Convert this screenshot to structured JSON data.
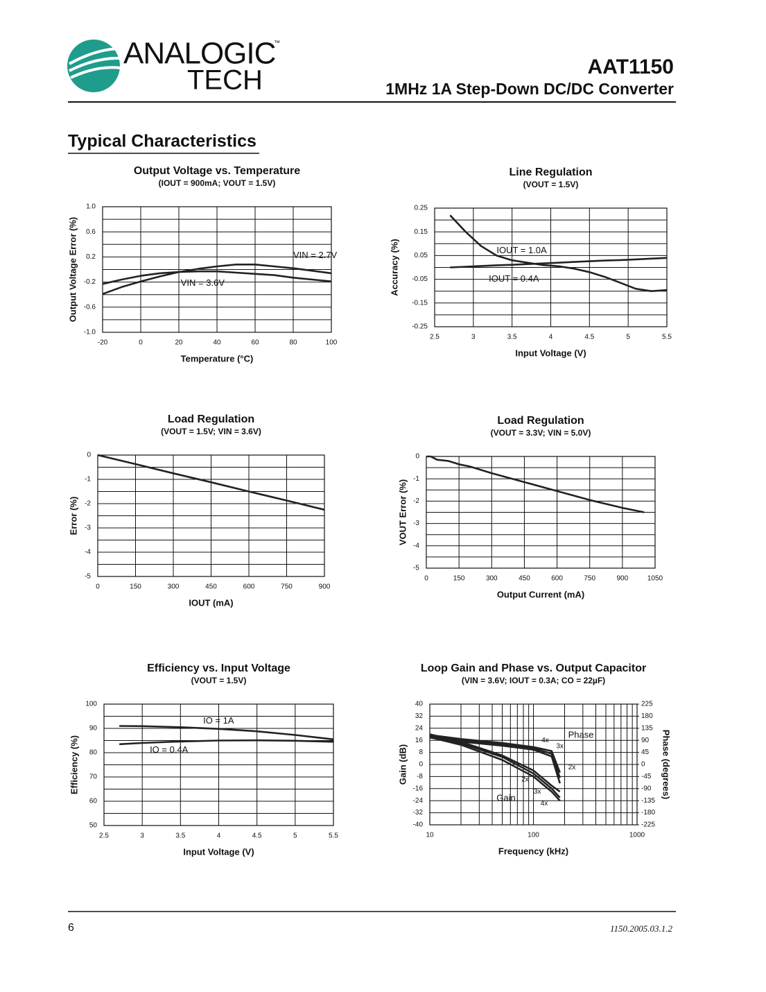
{
  "header": {
    "logo_top": "ANALOGIC",
    "logo_bottom": "TECH",
    "trademark": "™",
    "part": "AAT1150",
    "description": "1MHz 1A Step-Down DC/DC Converter"
  },
  "section_title": "Typical Characteristics",
  "footer": {
    "page": "6",
    "code": "1150.2005.03.1.2"
  },
  "chart_data": [
    {
      "type": "line",
      "title": "Output Voltage vs. Temperature",
      "subtitle": "(IOUT = 900mA; VOUT = 1.5V)",
      "xlabel": "Temperature (°C)",
      "ylabel": "Output Voltage Error (%)",
      "x": [
        -20,
        -10,
        0,
        10,
        20,
        30,
        40,
        50,
        60,
        70,
        80,
        90,
        100
      ],
      "series": [
        {
          "name": "VIN = 2.7V",
          "color": "#222222",
          "values": [
            -0.39,
            -0.28,
            -0.19,
            -0.11,
            -0.04,
            0.01,
            0.05,
            0.08,
            0.08,
            0.05,
            0.02,
            -0.02,
            -0.06
          ]
        },
        {
          "name": "VIN = 3.6V",
          "color": "#222222",
          "values": [
            -0.23,
            -0.16,
            -0.1,
            -0.06,
            -0.04,
            -0.03,
            -0.03,
            -0.05,
            -0.07,
            -0.09,
            -0.13,
            -0.16,
            -0.19
          ]
        }
      ],
      "xlim": [
        -20,
        100
      ],
      "xticks": [
        -20,
        0,
        20,
        40,
        60,
        80,
        100
      ],
      "ylim": [
        -1,
        1
      ],
      "yticks": [
        {
          "value": 1,
          "label": "1.0"
        },
        0.6,
        0.2,
        -0.2,
        -0.6,
        {
          "value": -1,
          "label": "-1.0"
        }
      ],
      "grid": true,
      "minor_grid": true
    },
    {
      "type": "line",
      "title": "Line Regulation",
      "subtitle": "(VOUT = 1.5V)",
      "xlabel": "Input Voltage (V)",
      "ylabel": "Accuracy (%)",
      "x": [
        2.7,
        2.9,
        3.1,
        3.3,
        3.5,
        3.7,
        3.9,
        4.1,
        4.3,
        4.5,
        4.7,
        4.9,
        5.1,
        5.3,
        5.5
      ],
      "series": [
        {
          "name": "IOUT = 1.0A",
          "color": "#222222",
          "values": [
            0.22,
            0.15,
            0.09,
            0.05,
            0.03,
            0.02,
            0.01,
            0.005,
            -0.005,
            -0.02,
            -0.04,
            -0.065,
            -0.09,
            -0.1,
            -0.095
          ]
        },
        {
          "name": "IOUT = 0.4A",
          "color": "#222222",
          "values": [
            0,
            0.003,
            0.006,
            0.009,
            0.011,
            0.014,
            0.017,
            0.02,
            0.023,
            0.026,
            0.029,
            0.031,
            0.034,
            0.037,
            0.04
          ]
        }
      ],
      "xlim": [
        2.5,
        5.5
      ],
      "xticks": [
        2.5,
        3,
        3.5,
        4,
        4.5,
        5,
        5.5
      ],
      "ylim": [
        -0.25,
        0.25
      ],
      "yticks": [
        0.25,
        0.15,
        0.05,
        -0.05,
        -0.15,
        -0.25
      ],
      "grid": true,
      "minor_grid": true
    },
    {
      "type": "line",
      "title": "Load Regulation",
      "subtitle": "(VOUT = 1.5V; VIN = 3.6V)",
      "xlabel": "IOUT (mA)",
      "ylabel": "Error (%)",
      "x": [
        0,
        150,
        300,
        450,
        600,
        750,
        900
      ],
      "series": [
        {
          "color": "#222222",
          "values": [
            0,
            -0.37,
            -0.75,
            -1.12,
            -1.5,
            -1.87,
            -2.25
          ]
        }
      ],
      "xlim": [
        0,
        900
      ],
      "xticks": [
        0,
        150,
        300,
        450,
        600,
        750,
        900
      ],
      "ylim": [
        -5,
        0
      ],
      "yticks": [
        0,
        -1,
        -2,
        -3,
        -4,
        -5
      ],
      "grid": true,
      "minor_grid": true
    },
    {
      "type": "line",
      "title": "Load Regulation",
      "subtitle": "(VOUT = 3.3V; VIN = 5.0V)",
      "xlabel": "Output Current (mA)",
      "ylabel": "VOUT Error (%)",
      "x": [
        0,
        20,
        50,
        100,
        150,
        200,
        300,
        450,
        600,
        750,
        900,
        1000
      ],
      "series": [
        {
          "color": "#222222",
          "values": [
            0,
            0,
            -0.15,
            -0.2,
            -0.35,
            -0.45,
            -0.75,
            -1.15,
            -1.55,
            -1.95,
            -2.3,
            -2.5
          ]
        }
      ],
      "xlim": [
        0,
        1050
      ],
      "xticks": [
        0,
        150,
        300,
        450,
        600,
        750,
        900,
        1050
      ],
      "ylim": [
        -5,
        0
      ],
      "yticks": [
        0,
        -1,
        -2,
        -3,
        -4,
        -5
      ],
      "grid": true,
      "minor_grid": true
    },
    {
      "type": "line",
      "title": "Efficiency vs. Input Voltage",
      "subtitle": "(VOUT = 1.5V)",
      "xlabel": "Input Voltage (V)",
      "ylabel": "Efficiency (%)",
      "x": [
        2.7,
        3,
        3.5,
        4,
        4.5,
        5,
        5.5
      ],
      "series": [
        {
          "name": "IO = 1A",
          "color": "#222222",
          "values": [
            91,
            90.9,
            90.5,
            89.8,
            88.8,
            87.3,
            85.5
          ]
        },
        {
          "name": "IO = 0.4A",
          "color": "#222222",
          "values": [
            83.5,
            84,
            84.6,
            85,
            85.1,
            84.9,
            84.5
          ]
        }
      ],
      "xlim": [
        2.5,
        5.5
      ],
      "xticks": [
        2.5,
        3,
        3.5,
        4,
        4.5,
        5,
        5.5
      ],
      "ylim": [
        50,
        100
      ],
      "yticks": [
        100,
        90,
        80,
        70,
        60,
        50
      ],
      "grid": true,
      "minor_grid": true
    },
    {
      "type": "line",
      "title": "Loop Gain and Phase vs. Output Capacitor",
      "subtitle": "(VIN = 3.6V; IOUT = 0.3A; CO = 22µF)",
      "xlabel": "Frequency (kHz)",
      "ylabel": "Gain (dB)",
      "y2label": "Phase (degrees)",
      "annotations": [
        "Gain",
        "Phase"
      ],
      "x": [
        10,
        20,
        50,
        100,
        150,
        180
      ],
      "series": [
        {
          "name": "2x",
          "color": "#222222",
          "values": [
            20,
            15,
            6,
            -4,
            -14,
            -18
          ]
        },
        {
          "name": "3x",
          "color": "#222222",
          "values": [
            19,
            14,
            5,
            -6,
            -16,
            -22
          ]
        },
        {
          "name": "4x",
          "color": "#222222",
          "values": [
            18,
            13,
            3,
            -8,
            -18,
            -24
          ]
        },
        {
          "name": "2x",
          "color": "#222222",
          "axis": "y2",
          "values": [
            100,
            85,
            70,
            55,
            30,
            -70
          ]
        },
        {
          "name": "3x",
          "color": "#222222",
          "axis": "y2",
          "values": [
            105,
            90,
            75,
            60,
            40,
            -50
          ]
        },
        {
          "name": "4x",
          "color": "#222222",
          "axis": "y2",
          "values": [
            110,
            95,
            80,
            65,
            50,
            -30
          ]
        }
      ],
      "xlim": [
        10,
        1000
      ],
      "xticks": [
        10,
        100,
        1000
      ],
      "log_x": true,
      "ylim": [
        -40,
        40
      ],
      "yticks": [
        40,
        32,
        24,
        16,
        8,
        0,
        -8,
        -16,
        -24,
        -32,
        -40
      ],
      "y2lim": [
        -225,
        225
      ],
      "y2ticks": [
        225,
        180,
        135,
        90,
        45,
        0,
        -45,
        -90,
        -135,
        -180,
        -225
      ],
      "grid": true
    }
  ]
}
